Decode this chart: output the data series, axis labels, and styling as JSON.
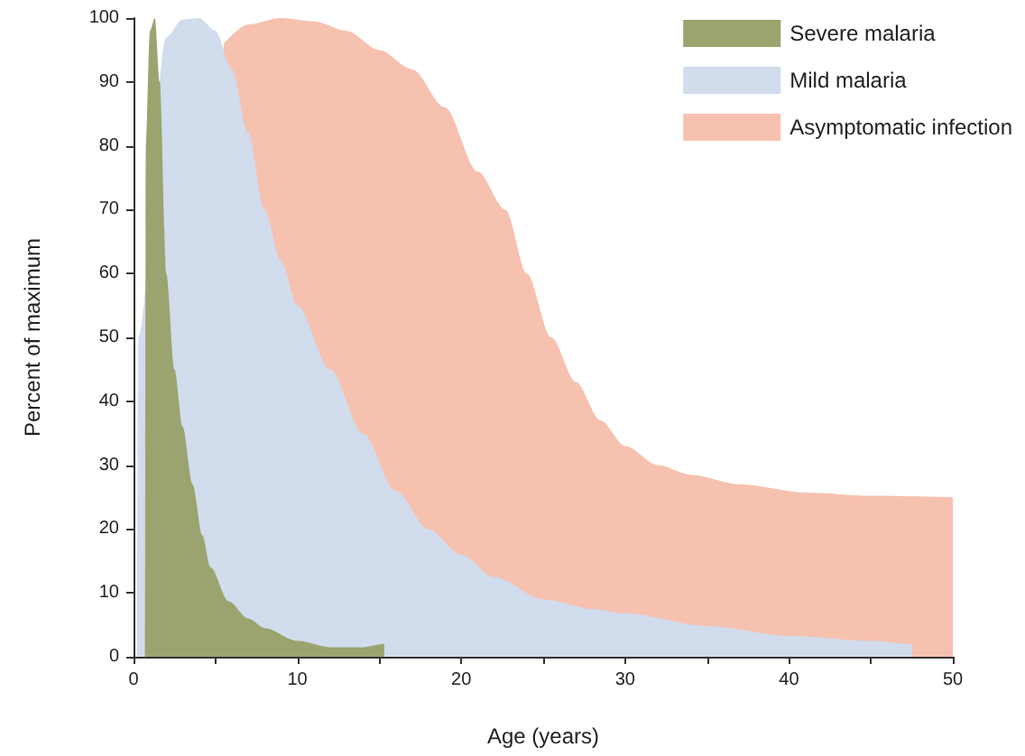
{
  "chart_data": {
    "type": "area",
    "xlabel": "Age (years)",
    "ylabel": "Percent of maximum",
    "xlim": [
      0,
      50
    ],
    "ylim": [
      0,
      100
    ],
    "xticks": [
      0,
      {
        "value": 5,
        "label": null
      },
      10,
      {
        "value": 15,
        "label": null
      },
      20,
      {
        "value": 25,
        "label": null
      },
      30,
      {
        "value": 35,
        "label": null
      },
      40,
      {
        "value": 45,
        "label": null
      },
      50
    ],
    "yticks": [
      0,
      10,
      20,
      30,
      40,
      50,
      60,
      70,
      80,
      90,
      100
    ],
    "grid": false,
    "legend": "top right",
    "marker": "none",
    "series": [
      {
        "name": "Asymptomatic infection",
        "color": "#f7c1b0",
        "x": [
          5.5,
          7,
          9,
          11,
          13,
          15,
          17,
          19,
          21,
          22.7,
          24,
          25.5,
          27,
          28.5,
          30,
          32,
          34,
          37,
          41,
          45,
          50
        ],
        "values": [
          96,
          99,
          100,
          99.5,
          98,
          95,
          92,
          86,
          76,
          70,
          60,
          50,
          43,
          37,
          33,
          30,
          28.5,
          27,
          25.7,
          25.2,
          25
        ]
      },
      {
        "name": "Mild malaria",
        "color": "#d1dcec",
        "x": [
          0.2,
          0.3,
          2,
          3,
          4,
          5,
          6,
          7,
          8,
          9,
          10,
          12,
          14,
          16,
          18,
          20,
          22,
          25,
          28,
          30,
          35,
          40,
          45,
          47.5,
          47.5
        ],
        "values": [
          0,
          50,
          97,
          99.8,
          100,
          98,
          92,
          82,
          70,
          62,
          55,
          45,
          35,
          26,
          20,
          16,
          12.5,
          9,
          7.5,
          6.8,
          4.8,
          3.3,
          2.5,
          2,
          0
        ]
      },
      {
        "name": "Severe malaria",
        "color": "#9ba46e",
        "x": [
          0.7,
          0.75,
          1,
          1.3,
          1.6,
          2,
          2.5,
          3,
          3.6,
          4.2,
          4.7,
          5.8,
          7,
          8,
          10,
          12,
          14,
          15.3,
          15.3
        ],
        "values": [
          0,
          80,
          98,
          100,
          90,
          60,
          45,
          36,
          27,
          19,
          14,
          8.7,
          6,
          4.5,
          2.5,
          1.5,
          1.5,
          2,
          0
        ]
      }
    ]
  }
}
